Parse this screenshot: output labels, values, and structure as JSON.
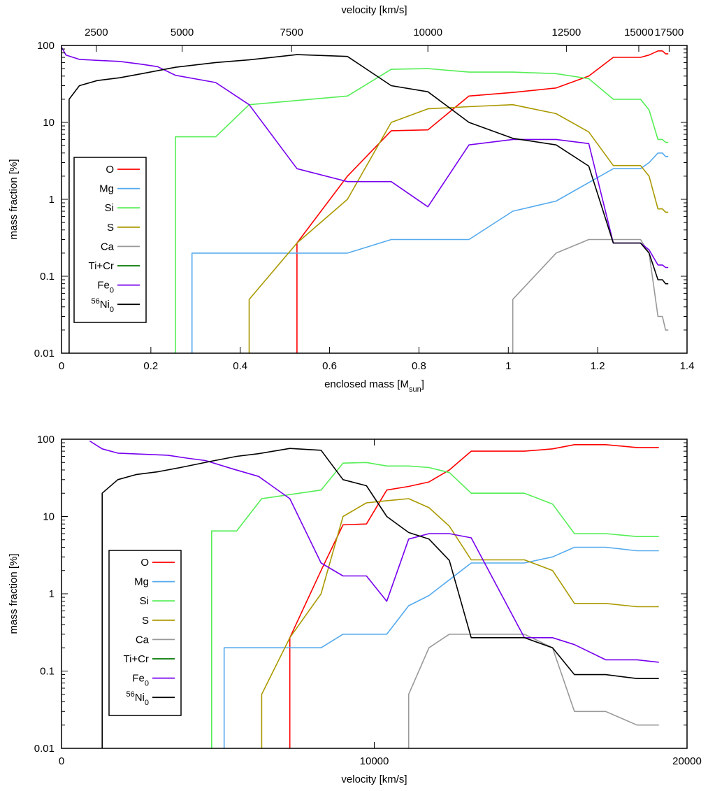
{
  "chart_data": [
    {
      "type": "line",
      "xlabel": "enclosed mass [M",
      "xlabel_sub": "sun",
      "xlabel_end": "]",
      "x2label": "velocity [km/s]",
      "ylabel": "mass fraction [%]",
      "xlim": [
        0,
        1.4
      ],
      "ylim": [
        0.01,
        100
      ],
      "yscale": "log",
      "xticks": [
        0,
        0.2,
        0.4,
        0.6,
        0.8,
        1,
        1.2,
        1.4
      ],
      "xtick_labels": [
        "0",
        "0.2",
        "0.4",
        "0.6",
        "0.8",
        "1",
        "1.2",
        "1.4"
      ],
      "yticks": [
        0.01,
        0.1,
        1,
        10,
        100
      ],
      "ytick_labels": [
        "0.01",
        "0.1",
        "1",
        "10",
        "100"
      ],
      "x2ticks": [
        {
          "label": "2500",
          "mass": 0.078
        },
        {
          "label": "5000",
          "mass": 0.27
        },
        {
          "label": "7500",
          "mass": 0.515
        },
        {
          "label": "10000",
          "mass": 0.82
        },
        {
          "label": "12500",
          "mass": 1.13
        },
        {
          "label": "15000",
          "mass": 1.292
        },
        {
          "label": "17500",
          "mass": 1.36
        }
      ],
      "legend_position": "lower-left",
      "series": [
        {
          "name": "O",
          "name_sub": "",
          "name_sup": "",
          "color": "#ff0000",
          "x": [
            0.527,
            0.527,
            0.64,
            0.738,
            0.82,
            0.912,
            1.01,
            1.107,
            1.18,
            1.235,
            1.296,
            1.315,
            1.335,
            1.345,
            1.352,
            1.358
          ],
          "y": [
            0.01,
            0.27,
            2,
            7.8,
            8,
            22,
            24.5,
            28,
            40,
            70,
            70,
            75,
            85,
            85,
            78,
            78
          ]
        },
        {
          "name": "Mg",
          "name_sub": "",
          "name_sup": "",
          "color": "#55aaee",
          "x": [
            0.292,
            0.292,
            0.64,
            0.738,
            0.912,
            1.01,
            1.107,
            1.235,
            1.296,
            1.315,
            1.335,
            1.345,
            1.352,
            1.358
          ],
          "y": [
            0.01,
            0.2,
            0.2,
            0.3,
            0.3,
            0.7,
            0.95,
            2.5,
            2.5,
            3,
            4,
            4,
            3.6,
            3.6
          ]
        },
        {
          "name": "Si",
          "name_sub": "",
          "name_sup": "",
          "color": "#55ee55",
          "x": [
            0.255,
            0.255,
            0.345,
            0.42,
            0.64,
            0.738,
            0.82,
            0.912,
            1.01,
            1.107,
            1.18,
            1.235,
            1.296,
            1.315,
            1.335,
            1.345,
            1.352,
            1.358
          ],
          "y": [
            0.01,
            6.5,
            6.5,
            17,
            22,
            49,
            50,
            45,
            45,
            43,
            37,
            20,
            20,
            14.5,
            6,
            6,
            5.5,
            5.5
          ]
        },
        {
          "name": "S",
          "name_sub": "",
          "name_sup": "",
          "color": "#aa9900",
          "x": [
            0.42,
            0.42,
            0.527,
            0.64,
            0.738,
            0.82,
            0.912,
            1.01,
            1.107,
            1.18,
            1.235,
            1.296,
            1.315,
            1.335,
            1.345,
            1.352,
            1.358
          ],
          "y": [
            0.01,
            0.05,
            0.27,
            1,
            10,
            15,
            16,
            17,
            13,
            7.5,
            2.75,
            2.75,
            2,
            0.75,
            0.75,
            0.68,
            0.68
          ]
        },
        {
          "name": "Ca",
          "name_sub": "",
          "name_sup": "",
          "color": "#999999",
          "x": [
            1.01,
            1.01,
            1.107,
            1.18,
            1.235,
            1.296,
            1.315,
            1.335,
            1.345,
            1.352,
            1.358
          ],
          "y": [
            0.01,
            0.05,
            0.2,
            0.3,
            0.3,
            0.3,
            0.2,
            0.03,
            0.03,
            0.02,
            0.02
          ]
        },
        {
          "name": "Ti+Cr",
          "name_sub": "",
          "name_sup": "",
          "color": "#007700",
          "x": [],
          "y": []
        },
        {
          "name": "Fe",
          "name_sub": "0",
          "name_sup": "",
          "color": "#7700ee",
          "x": [
            0.0,
            0.01,
            0.04,
            0.08,
            0.13,
            0.18,
            0.215,
            0.255,
            0.345,
            0.42,
            0.527,
            0.64,
            0.738,
            0.82,
            0.912,
            1.01,
            1.107,
            1.18,
            1.235,
            1.296,
            1.315,
            1.335,
            1.345,
            1.352,
            1.358
          ],
          "y": [
            95,
            75,
            66,
            64,
            62,
            57,
            53,
            41,
            33,
            17,
            2.5,
            1.7,
            1.7,
            0.8,
            5.1,
            6,
            6,
            5.3,
            0.27,
            0.27,
            0.22,
            0.14,
            0.14,
            0.13,
            0.13
          ]
        },
        {
          "name": "Ni",
          "name_sub": "0",
          "name_sup": "56",
          "color": "#000000",
          "x": [
            0.017,
            0.017,
            0.04,
            0.08,
            0.13,
            0.18,
            0.255,
            0.345,
            0.42,
            0.527,
            0.64,
            0.738,
            0.82,
            0.912,
            1.01,
            1.107,
            1.18,
            1.235,
            1.296,
            1.315,
            1.335,
            1.345,
            1.352,
            1.358
          ],
          "y": [
            0.01,
            20,
            30,
            35,
            38,
            43,
            52,
            60,
            65,
            76,
            72,
            30,
            25,
            10,
            6.2,
            5.1,
            2.7,
            0.27,
            0.27,
            0.2,
            0.09,
            0.09,
            0.08,
            0.08
          ]
        }
      ]
    },
    {
      "type": "line",
      "xlabel": "velocity [km/s]",
      "ylabel": "mass fraction [%]",
      "xlim": [
        0,
        20000
      ],
      "ylim": [
        0.01,
        100
      ],
      "yscale": "log",
      "xticks": [
        0,
        10000,
        20000
      ],
      "xtick_labels": [
        "0",
        "10000",
        "20000"
      ],
      "yticks": [
        0.01,
        0.1,
        1,
        10,
        100
      ],
      "ytick_labels": [
        "0.01",
        "0.1",
        "1",
        "10",
        "100"
      ],
      "legend_position": "lower-left",
      "series": [
        {
          "name": "O",
          "name_sub": "",
          "name_sup": "",
          "color": "#ff0000",
          "x": [
            7300,
            7300,
            8300,
            9000,
            9750,
            10400,
            11100,
            11750,
            12400,
            13100,
            14800,
            15700,
            16400,
            17400,
            18400,
            19100
          ],
          "y": [
            0.01,
            0.27,
            2,
            7.8,
            8,
            22,
            24.5,
            28,
            40,
            70,
            70,
            75,
            85,
            85,
            78,
            78
          ]
        },
        {
          "name": "Mg",
          "name_sub": "",
          "name_sup": "",
          "color": "#55aaee",
          "x": [
            5200,
            5200,
            8300,
            9000,
            10400,
            11100,
            11750,
            13100,
            14800,
            15700,
            16400,
            17400,
            18400,
            19100
          ],
          "y": [
            0.01,
            0.2,
            0.2,
            0.3,
            0.3,
            0.7,
            0.95,
            2.5,
            2.5,
            3,
            4,
            4,
            3.6,
            3.6
          ]
        },
        {
          "name": "Si",
          "name_sub": "",
          "name_sup": "",
          "color": "#55ee55",
          "x": [
            4800,
            4800,
            5600,
            6400,
            8300,
            9000,
            9750,
            10400,
            11100,
            11750,
            12400,
            13100,
            14800,
            15700,
            16400,
            17400,
            18400,
            19100
          ],
          "y": [
            0.01,
            6.5,
            6.5,
            17,
            22,
            49,
            50,
            45,
            45,
            43,
            37,
            20,
            20,
            14.5,
            6,
            6,
            5.5,
            5.5
          ]
        },
        {
          "name": "S",
          "name_sub": "",
          "name_sup": "",
          "color": "#aa9900",
          "x": [
            6400,
            6400,
            7300,
            8300,
            9000,
            9750,
            10400,
            11100,
            11750,
            12400,
            13100,
            14800,
            15700,
            16400,
            17400,
            18400,
            19100
          ],
          "y": [
            0.01,
            0.05,
            0.27,
            1,
            10,
            15,
            16,
            17,
            13,
            7.5,
            2.75,
            2.75,
            2,
            0.75,
            0.75,
            0.68,
            0.68
          ]
        },
        {
          "name": "Ca",
          "name_sub": "",
          "name_sup": "",
          "color": "#999999",
          "x": [
            11100,
            11100,
            11750,
            12400,
            13100,
            14800,
            15700,
            16400,
            17400,
            18400,
            19100
          ],
          "y": [
            0.01,
            0.05,
            0.2,
            0.3,
            0.3,
            0.3,
            0.2,
            0.03,
            0.03,
            0.02,
            0.02
          ]
        },
        {
          "name": "Ti+Cr",
          "name_sub": "",
          "name_sup": "",
          "color": "#007700",
          "x": [],
          "y": []
        },
        {
          "name": "Fe",
          "name_sub": "0",
          "name_sup": "",
          "color": "#7700ee",
          "x": [
            900,
            1300,
            1800,
            2600,
            3400,
            4000,
            4600,
            5500,
            6300,
            7300,
            8300,
            9000,
            9750,
            10400,
            11100,
            11750,
            12400,
            13100,
            14800,
            15700,
            16400,
            17400,
            18400,
            19100
          ],
          "y": [
            95,
            75,
            66,
            64,
            62,
            57,
            53,
            41,
            33,
            17,
            2.5,
            1.7,
            1.7,
            0.8,
            5.1,
            6,
            6,
            5.3,
            0.27,
            0.27,
            0.22,
            0.14,
            0.14,
            0.13
          ]
        },
        {
          "name": "Ni",
          "name_sub": "0",
          "name_sup": "56",
          "color": "#000000",
          "x": [
            1300,
            1300,
            1800,
            2400,
            3100,
            3800,
            4800,
            5600,
            6300,
            7300,
            8300,
            9000,
            9750,
            10400,
            11100,
            11750,
            12400,
            13100,
            14800,
            15700,
            16400,
            17400,
            18400,
            19100
          ],
          "y": [
            0.01,
            20,
            30,
            35,
            38,
            43,
            52,
            60,
            65,
            76,
            72,
            30,
            25,
            10,
            6.2,
            5.1,
            2.7,
            0.27,
            0.27,
            0.2,
            0.09,
            0.09,
            0.08,
            0.08
          ]
        }
      ]
    }
  ]
}
